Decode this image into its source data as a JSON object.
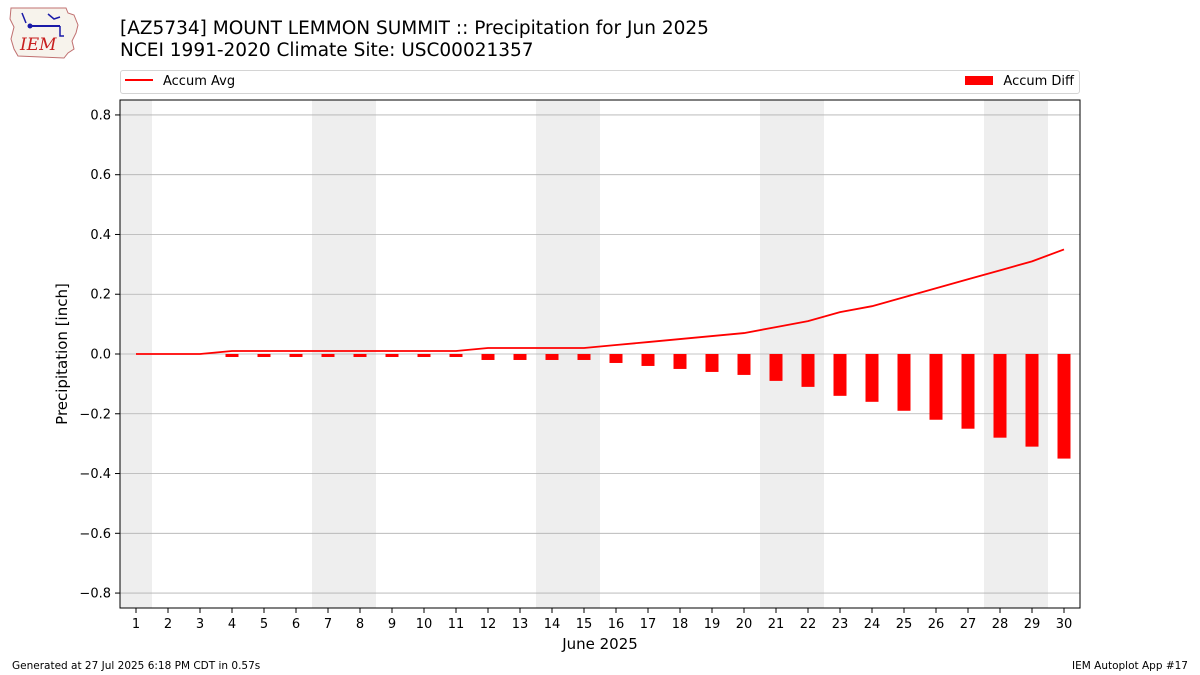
{
  "header": {
    "logo_text": "IEM",
    "title_line1": "[AZ5734] MOUNT LEMMON SUMMIT :: Precipitation for Jun 2025",
    "title_line2": "NCEI 1991-2020 Climate Site: USC00021357"
  },
  "footer": {
    "generated": "Generated at 27 Jul 2025 6:18 PM CDT in 0.57s",
    "app": "IEM Autoplot App #17"
  },
  "colors": {
    "series": "#ff0000",
    "weekend_shade": "#eeeeee",
    "grid": "#b0b0b0"
  },
  "chart_data": {
    "type": "bar",
    "title": "[AZ5734] MOUNT LEMMON SUMMIT :: Precipitation for Jun 2025",
    "subtitle": "NCEI 1991-2020 Climate Site: USC00021357",
    "xlabel": "June 2025",
    "ylabel": "Precipitation [inch]",
    "x": [
      1,
      2,
      3,
      4,
      5,
      6,
      7,
      8,
      9,
      10,
      11,
      12,
      13,
      14,
      15,
      16,
      17,
      18,
      19,
      20,
      21,
      22,
      23,
      24,
      25,
      26,
      27,
      28,
      29,
      30
    ],
    "xlim": [
      0.5,
      30.5
    ],
    "ylim": [
      -0.85,
      0.85
    ],
    "yticks": [
      -0.8,
      -0.6,
      -0.4,
      -0.2,
      0.0,
      0.2,
      0.4,
      0.6,
      0.8
    ],
    "ytick_labels": [
      "−0.8",
      "−0.6",
      "−0.4",
      "−0.2",
      "0.0",
      "0.2",
      "0.4",
      "0.6",
      "0.8"
    ],
    "grid": true,
    "legend_position": "top",
    "weekend_days": [
      1,
      7,
      8,
      14,
      15,
      21,
      22,
      28,
      29
    ],
    "series": [
      {
        "name": "Accum Avg",
        "type": "line",
        "values": [
          0,
          0,
          0,
          0.01,
          0.01,
          0.01,
          0.01,
          0.01,
          0.01,
          0.01,
          0.01,
          0.02,
          0.02,
          0.02,
          0.02,
          0.03,
          0.04,
          0.05,
          0.06,
          0.07,
          0.09,
          0.11,
          0.14,
          0.16,
          0.19,
          0.22,
          0.25,
          0.28,
          0.31,
          0.35
        ]
      },
      {
        "name": "Accum Diff",
        "type": "bar",
        "values": [
          0,
          0,
          0,
          -0.01,
          -0.01,
          -0.01,
          -0.01,
          -0.01,
          -0.01,
          -0.01,
          -0.01,
          -0.02,
          -0.02,
          -0.02,
          -0.02,
          -0.03,
          -0.04,
          -0.05,
          -0.06,
          -0.07,
          -0.09,
          -0.11,
          -0.14,
          -0.16,
          -0.19,
          -0.22,
          -0.25,
          -0.28,
          -0.31,
          -0.35
        ]
      }
    ]
  }
}
